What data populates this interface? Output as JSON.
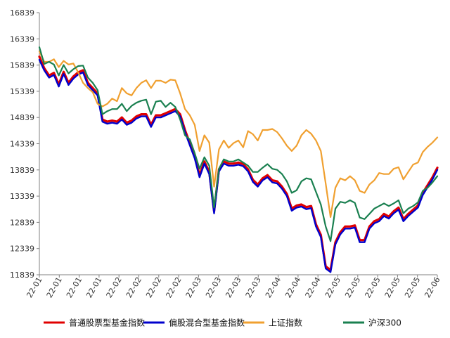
{
  "chart_data": {
    "type": "line",
    "title": "",
    "xlabel": "",
    "ylabel": "",
    "ylim": [
      11839,
      16839
    ],
    "y_ticks": [
      "16839",
      "16339",
      "15839",
      "15339",
      "14839",
      "14339",
      "13839",
      "13339",
      "12839",
      "12339",
      "11839"
    ],
    "x_tick_labels": [
      "22-01",
      "22-01",
      "22-01",
      "22-01",
      "22-02",
      "22-02",
      "22-02",
      "22-02",
      "22-03",
      "22-03",
      "22-03",
      "22-03",
      "22-04",
      "22-04",
      "22-04",
      "22-05",
      "22-05",
      "22-05",
      "22-05",
      "22-05",
      "22-06"
    ],
    "grid": false,
    "legend_position": "bottom",
    "colors": {
      "axis": "#808080",
      "pu_tong": "#e00000",
      "pian_gu": "#0000cc",
      "shang_zheng": "#f0a030",
      "hs300": "#1a8050"
    },
    "series": [
      {
        "name": "普通股票型基金指数",
        "color": "#e00000",
        "values": [
          16000,
          15780,
          15640,
          15690,
          15470,
          15710,
          15500,
          15620,
          15700,
          15740,
          15500,
          15400,
          15300,
          14800,
          14760,
          14780,
          14760,
          14840,
          14740,
          14780,
          14860,
          14900,
          14900,
          14700,
          14880,
          14880,
          14920,
          14960,
          15000,
          14900,
          14600,
          14350,
          14100,
          13740,
          14000,
          13800,
          13050,
          13850,
          14000,
          13960,
          13960,
          13980,
          13950,
          13850,
          13650,
          13560,
          13680,
          13740,
          13640,
          13620,
          13520,
          13380,
          13100,
          13160,
          13180,
          13130,
          13150,
          12800,
          12600,
          12000,
          11930,
          12460,
          12650,
          12760,
          12760,
          12780,
          12500,
          12500,
          12760,
          12860,
          12900,
          13000,
          12950,
          13050,
          13120,
          12900,
          13000,
          13080,
          13160,
          13400,
          13550,
          13700,
          13880
        ]
      },
      {
        "name": "偏股混合型基金指数",
        "color": "#0000cc",
        "values": [
          15940,
          15740,
          15600,
          15650,
          15430,
          15670,
          15460,
          15580,
          15660,
          15700,
          15460,
          15360,
          15260,
          14760,
          14720,
          14740,
          14720,
          14800,
          14700,
          14740,
          14820,
          14860,
          14860,
          14660,
          14840,
          14840,
          14880,
          14920,
          14960,
          14860,
          14560,
          14310,
          14060,
          13700,
          13960,
          13760,
          13010,
          13810,
          13960,
          13920,
          13920,
          13940,
          13910,
          13810,
          13610,
          13520,
          13640,
          13700,
          13600,
          13580,
          13480,
          13340,
          13060,
          13120,
          13140,
          13090,
          13110,
          12760,
          12560,
          11960,
          11890,
          12420,
          12610,
          12720,
          12720,
          12740,
          12460,
          12460,
          12720,
          12820,
          12860,
          12960,
          12910,
          13010,
          13080,
          12860,
          12960,
          13040,
          13120,
          13360,
          13510,
          13660,
          13840
        ]
      },
      {
        "name": "上证指数",
        "color": "#f0a030",
        "values": [
          16100,
          15900,
          15900,
          15950,
          15800,
          15920,
          15850,
          15870,
          15700,
          15500,
          15400,
          15320,
          15100,
          15050,
          15100,
          15200,
          15150,
          15400,
          15300,
          15260,
          15400,
          15500,
          15550,
          15400,
          15540,
          15540,
          15500,
          15560,
          15550,
          15300,
          15000,
          14880,
          14700,
          14200,
          14500,
          14360,
          13520,
          14230,
          14400,
          14260,
          14350,
          14400,
          14270,
          14580,
          14520,
          14400,
          14600,
          14600,
          14620,
          14560,
          14440,
          14300,
          14200,
          14300,
          14500,
          14600,
          14530,
          14400,
          14200,
          13580,
          12940,
          13500,
          13680,
          13640,
          13720,
          13640,
          13440,
          13400,
          13560,
          13640,
          13780,
          13760,
          13760,
          13860,
          13890,
          13660,
          13800,
          13940,
          13980,
          14180,
          14280,
          14360,
          14460
        ]
      },
      {
        "name": "沪深300",
        "color": "#1a8050",
        "values": [
          16180,
          15860,
          15900,
          15850,
          15640,
          15840,
          15680,
          15760,
          15820,
          15830,
          15600,
          15500,
          15360,
          14900,
          14960,
          15000,
          15000,
          15100,
          14960,
          15060,
          15120,
          15160,
          15180,
          14900,
          15140,
          15160,
          15040,
          15120,
          15040,
          14800,
          14500,
          14420,
          14160,
          13860,
          14080,
          13920,
          13120,
          13860,
          14040,
          14000,
          14000,
          14040,
          13980,
          13920,
          13800,
          13800,
          13880,
          13950,
          13860,
          13840,
          13760,
          13620,
          13400,
          13450,
          13620,
          13680,
          13660,
          13420,
          13180,
          12760,
          12480,
          13100,
          13230,
          13210,
          13260,
          13210,
          12930,
          12900,
          13000,
          13100,
          13150,
          13200,
          13150,
          13200,
          13260,
          13010,
          13100,
          13150,
          13220,
          13440,
          13500,
          13600,
          13720
        ]
      }
    ]
  }
}
